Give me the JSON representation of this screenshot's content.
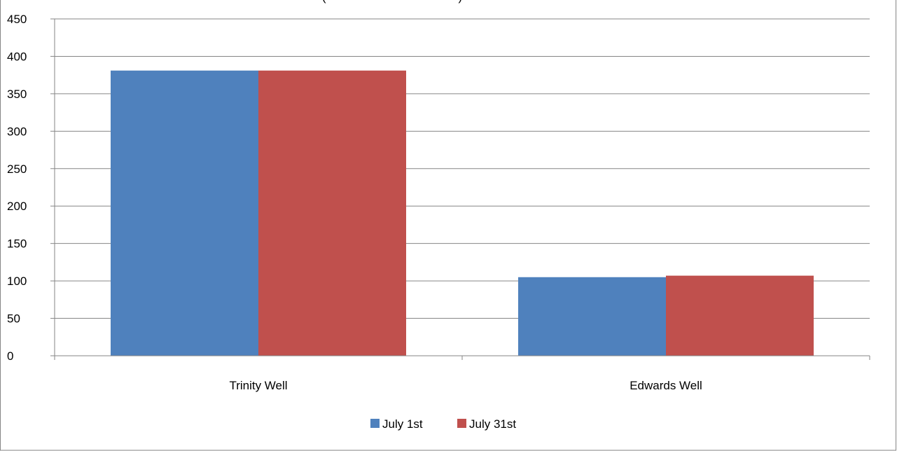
{
  "chart_data": {
    "type": "bar",
    "title": "",
    "partial_title_visible": "(                                        )",
    "categories": [
      "Trinity Well",
      "Edwards Well"
    ],
    "series": [
      {
        "name": "July 1st",
        "values": [
          381,
          105
        ],
        "color": "#4F81BD"
      },
      {
        "name": "July 31st",
        "values": [
          381,
          107
        ],
        "color": "#C0504D"
      }
    ],
    "xlabel": "",
    "ylabel": "",
    "ylim": [
      0,
      450
    ],
    "yticks": [
      0,
      50,
      100,
      150,
      200,
      250,
      300,
      350,
      400,
      450
    ],
    "grid": true,
    "legend_position": "bottom"
  },
  "colors": {
    "gridline": "#868686",
    "frame": "#868686",
    "axis": "#868686"
  }
}
